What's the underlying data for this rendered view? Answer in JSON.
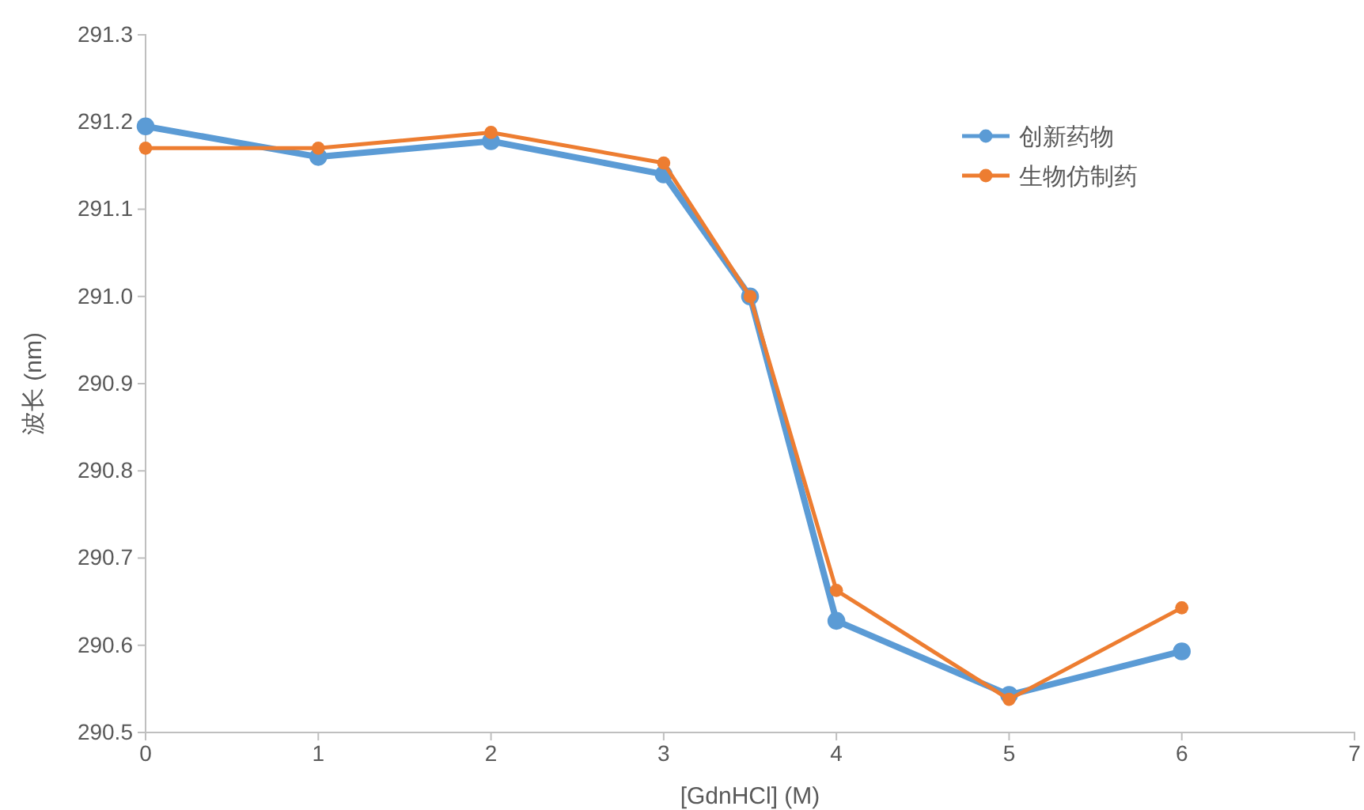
{
  "chart_data": {
    "type": "line",
    "xlabel": "[GdnHCl] (M)",
    "ylabel": "波长 (nm)",
    "x": [
      0,
      1,
      2,
      3,
      3.5,
      4,
      5,
      6
    ],
    "series": [
      {
        "name": "创新药物",
        "color": "#5b9bd5",
        "values": [
          291.195,
          291.16,
          291.178,
          291.14,
          291.0,
          290.628,
          290.543,
          290.593
        ]
      },
      {
        "name": "生物仿制药",
        "color": "#ed7d31",
        "values": [
          291.17,
          291.17,
          291.188,
          291.153,
          291.0,
          290.663,
          290.538,
          290.643
        ]
      }
    ],
    "xlim": [
      0,
      7
    ],
    "xticks": [
      0,
      1,
      2,
      3,
      4,
      5,
      6,
      7
    ],
    "ylim": [
      290.5,
      291.3
    ],
    "yticks": [
      {
        "value": 290.5,
        "label": "290.5"
      },
      {
        "value": 290.6,
        "label": "290.6"
      },
      {
        "value": 290.7,
        "label": "290.7"
      },
      {
        "value": 290.8,
        "label": "290.8"
      },
      {
        "value": 290.9,
        "label": "290.9"
      },
      {
        "value": 291.0,
        "label": "291.0"
      },
      {
        "value": 291.1,
        "label": "291.1"
      },
      {
        "value": 291.2,
        "label": "291.2"
      },
      {
        "value": 291.3,
        "label": "291.3"
      }
    ],
    "grid": false,
    "legend": "top right",
    "marker": "circle",
    "line_style": "solid"
  }
}
